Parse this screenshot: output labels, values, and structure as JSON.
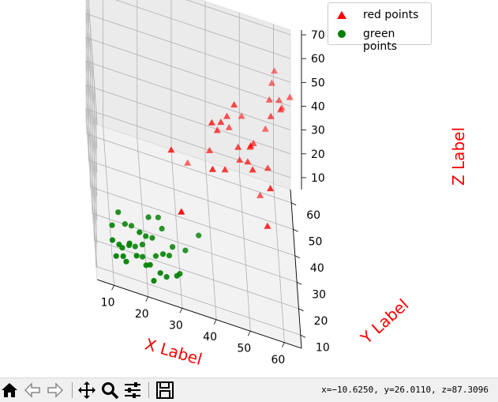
{
  "chart_data": {
    "type": "scatter3d",
    "xlabel": "X Label",
    "ylabel": "Y Label",
    "zlabel": "Z Label",
    "label_color": "#ff0000",
    "xlim": [
      5,
      65
    ],
    "ylim": [
      5,
      65
    ],
    "zlim": [
      5,
      72
    ],
    "xticks": [
      10,
      20,
      30,
      40,
      50,
      60
    ],
    "yticks": [
      10,
      20,
      30,
      40,
      50,
      60
    ],
    "zticks": [
      10,
      20,
      30,
      40,
      50,
      60,
      70
    ],
    "grid": true,
    "legend_position": "upper-right",
    "series": [
      {
        "name": "red points",
        "marker": "triangle",
        "color": "#ff0000",
        "points": [
          [
            40,
            30,
            60
          ],
          [
            42,
            37,
            50
          ],
          [
            28,
            28,
            45
          ],
          [
            30,
            10,
            40
          ],
          [
            40,
            25,
            46
          ],
          [
            51,
            38,
            40
          ],
          [
            57,
            26,
            45
          ],
          [
            56,
            23,
            32
          ],
          [
            44,
            32,
            40
          ],
          [
            43,
            36,
            55
          ],
          [
            49,
            45,
            32
          ],
          [
            48,
            35,
            48
          ],
          [
            45,
            40,
            54
          ],
          [
            50,
            53,
            42
          ],
          [
            46,
            47,
            42
          ],
          [
            52,
            30,
            46
          ],
          [
            52,
            40,
            45
          ],
          [
            57,
            40,
            38
          ],
          [
            52,
            44,
            40
          ],
          [
            53,
            44,
            42
          ],
          [
            57,
            53,
            40
          ],
          [
            58,
            42,
            58
          ],
          [
            58,
            50,
            56
          ],
          [
            61,
            44,
            60
          ],
          [
            62,
            56,
            48
          ],
          [
            64,
            50,
            60
          ],
          [
            59,
            55,
            58
          ],
          [
            61,
            53,
            54
          ],
          [
            34,
            50,
            18
          ],
          [
            47,
            38,
            62
          ],
          [
            55,
            45,
            20
          ],
          [
            60,
            60,
            58
          ],
          [
            40,
            42,
            35
          ]
        ]
      },
      {
        "name": "green points",
        "marker": "circle",
        "color": "#008000",
        "points": [
          [
            10,
            14,
            14
          ],
          [
            10,
            16,
            18
          ],
          [
            11,
            12,
            10
          ],
          [
            12,
            20,
            20
          ],
          [
            12,
            15,
            12
          ],
          [
            13,
            16,
            10
          ],
          [
            13,
            11,
            12
          ],
          [
            14,
            13,
            8
          ],
          [
            14,
            20,
            16
          ],
          [
            15,
            14,
            15
          ],
          [
            15,
            16,
            12
          ],
          [
            16,
            22,
            14
          ],
          [
            17,
            12,
            13
          ],
          [
            17,
            20,
            8
          ],
          [
            18,
            15,
            20
          ],
          [
            19,
            17,
            8
          ],
          [
            19,
            18,
            12
          ],
          [
            20,
            16,
            6
          ],
          [
            20,
            18,
            16
          ],
          [
            21,
            13,
            10
          ],
          [
            21,
            22,
            20
          ],
          [
            22,
            11,
            6
          ],
          [
            22,
            20,
            14
          ],
          [
            23,
            19,
            8
          ],
          [
            24,
            13,
            8
          ],
          [
            25,
            17,
            12
          ],
          [
            25,
            23,
            16
          ],
          [
            26,
            16,
            4
          ],
          [
            27,
            20,
            9
          ],
          [
            28,
            21,
            12
          ],
          [
            29,
            15,
            7
          ],
          [
            30,
            18,
            5
          ],
          [
            32,
            25,
            8
          ],
          [
            36,
            27,
            14
          ],
          [
            24,
            25,
            18
          ]
        ]
      }
    ]
  },
  "legend": {
    "red_label": "red points",
    "green_label": "green points"
  },
  "toolbar": {
    "home_icon": "home-icon",
    "back_icon": "back-arrow-icon",
    "forward_icon": "forward-arrow-icon",
    "pan_icon": "pan-move-icon",
    "zoom_icon": "magnifier-icon",
    "configure_icon": "sliders-icon",
    "save_icon": "floppy-disk-icon",
    "coords_text": "x=−10.6250, y=26.0110, z=87.3096"
  }
}
